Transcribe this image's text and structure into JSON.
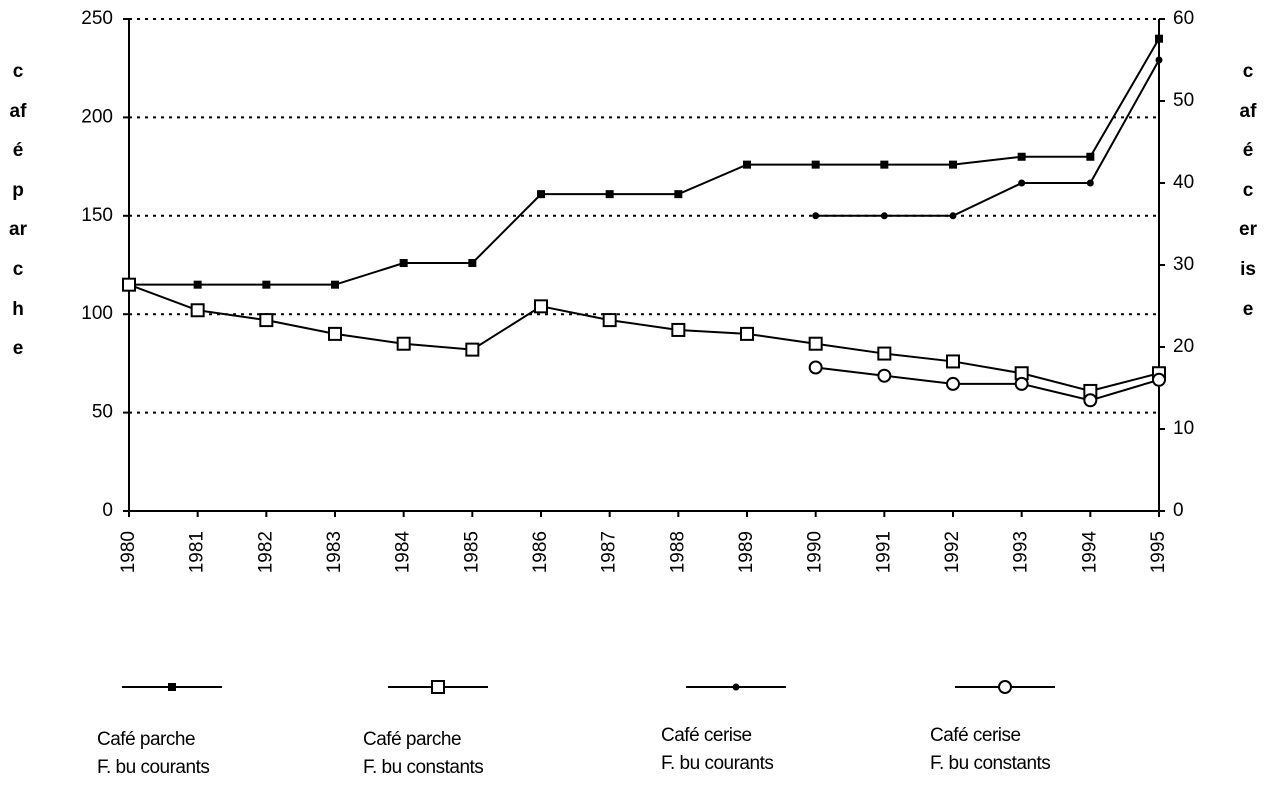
{
  "chart_data": {
    "type": "line",
    "y_label": "café parche",
    "y2_label": "café cerise",
    "x": [
      1980,
      1981,
      1982,
      1983,
      1984,
      1985,
      1986,
      1987,
      1988,
      1989,
      1990,
      1991,
      1992,
      1993,
      1994,
      1995
    ],
    "xlim": [
      1980,
      1995
    ],
    "xticks": [
      1980,
      1981,
      1982,
      1983,
      1984,
      1985,
      1986,
      1987,
      1988,
      1989,
      1990,
      1991,
      1992,
      1993,
      1994,
      1995
    ],
    "ylim": [
      0,
      250
    ],
    "yticks": [
      0,
      50,
      100,
      150,
      200,
      250
    ],
    "y2lim": [
      0,
      60
    ],
    "y2ticks": [
      0,
      10,
      20,
      30,
      40,
      50,
      60
    ],
    "grid": true,
    "series": [
      {
        "name": "Café parche\nF. bu courants",
        "color": "#000000",
        "marker": "square-filled",
        "values": [
          115,
          115,
          115,
          115,
          126,
          126,
          161,
          161,
          161,
          176,
          176,
          176,
          176,
          180,
          180,
          240
        ]
      },
      {
        "name": "Café parche\nF. bu constants",
        "color": "#000000",
        "marker": "square-open",
        "values": [
          115,
          102,
          97,
          90,
          85,
          82,
          104,
          97,
          92,
          90,
          85,
          80,
          76,
          70,
          61,
          70
        ]
      },
      {
        "name": "Café cerise\nF. bu courants",
        "color": "#000000",
        "marker": "dot",
        "axis": "y2",
        "values": [
          null,
          null,
          null,
          null,
          null,
          null,
          null,
          null,
          null,
          null,
          36,
          36,
          36,
          40,
          40,
          55
        ]
      },
      {
        "name": "Café cerise\nF. bu constants",
        "color": "#000000",
        "marker": "circle-open",
        "axis": "y2",
        "values": [
          null,
          null,
          null,
          null,
          null,
          null,
          null,
          null,
          null,
          null,
          17.5,
          16.5,
          15.5,
          15.5,
          13.5,
          16
        ]
      }
    ]
  }
}
